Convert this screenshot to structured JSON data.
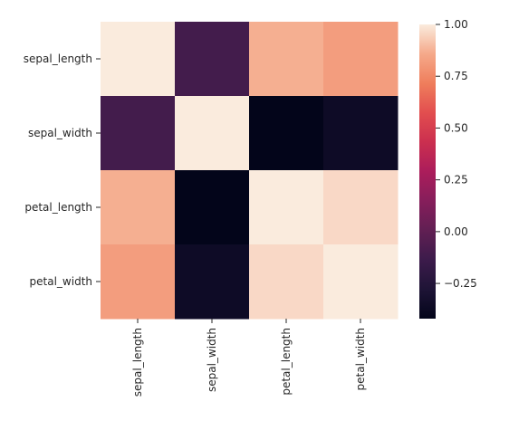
{
  "chart_data": {
    "type": "heatmap",
    "title": "",
    "xlabel": "",
    "ylabel": "",
    "x_categories": [
      "sepal_length",
      "sepal_width",
      "petal_length",
      "petal_width"
    ],
    "y_categories": [
      "sepal_length",
      "sepal_width",
      "petal_length",
      "petal_width"
    ],
    "values": [
      [
        1.0,
        -0.11,
        0.87,
        0.82
      ],
      [
        -0.11,
        1.0,
        -0.42,
        -0.36
      ],
      [
        0.87,
        -0.42,
        1.0,
        0.96
      ],
      [
        0.82,
        -0.36,
        0.96,
        1.0
      ]
    ],
    "colorbar": {
      "min": -0.42,
      "max": 1.0,
      "ticks": [
        1.0,
        0.75,
        0.5,
        0.25,
        0.0,
        -0.25
      ],
      "tick_labels": [
        "1.00",
        "0.75",
        "0.50",
        "0.25",
        "0.00",
        "−0.25"
      ]
    },
    "colormap_stops": [
      [
        0.0,
        "#03051a"
      ],
      [
        0.1,
        "#1e1436"
      ],
      [
        0.2,
        "#3c1b4b"
      ],
      [
        0.3,
        "#611f53"
      ],
      [
        0.4,
        "#861e5b"
      ],
      [
        0.5,
        "#ab1d5b"
      ],
      [
        0.6,
        "#cb2f4f"
      ],
      [
        0.7,
        "#e24e4f"
      ],
      [
        0.8,
        "#ef7e5c"
      ],
      [
        0.9,
        "#f5a98a"
      ],
      [
        1.0,
        "#faebdd"
      ]
    ]
  }
}
